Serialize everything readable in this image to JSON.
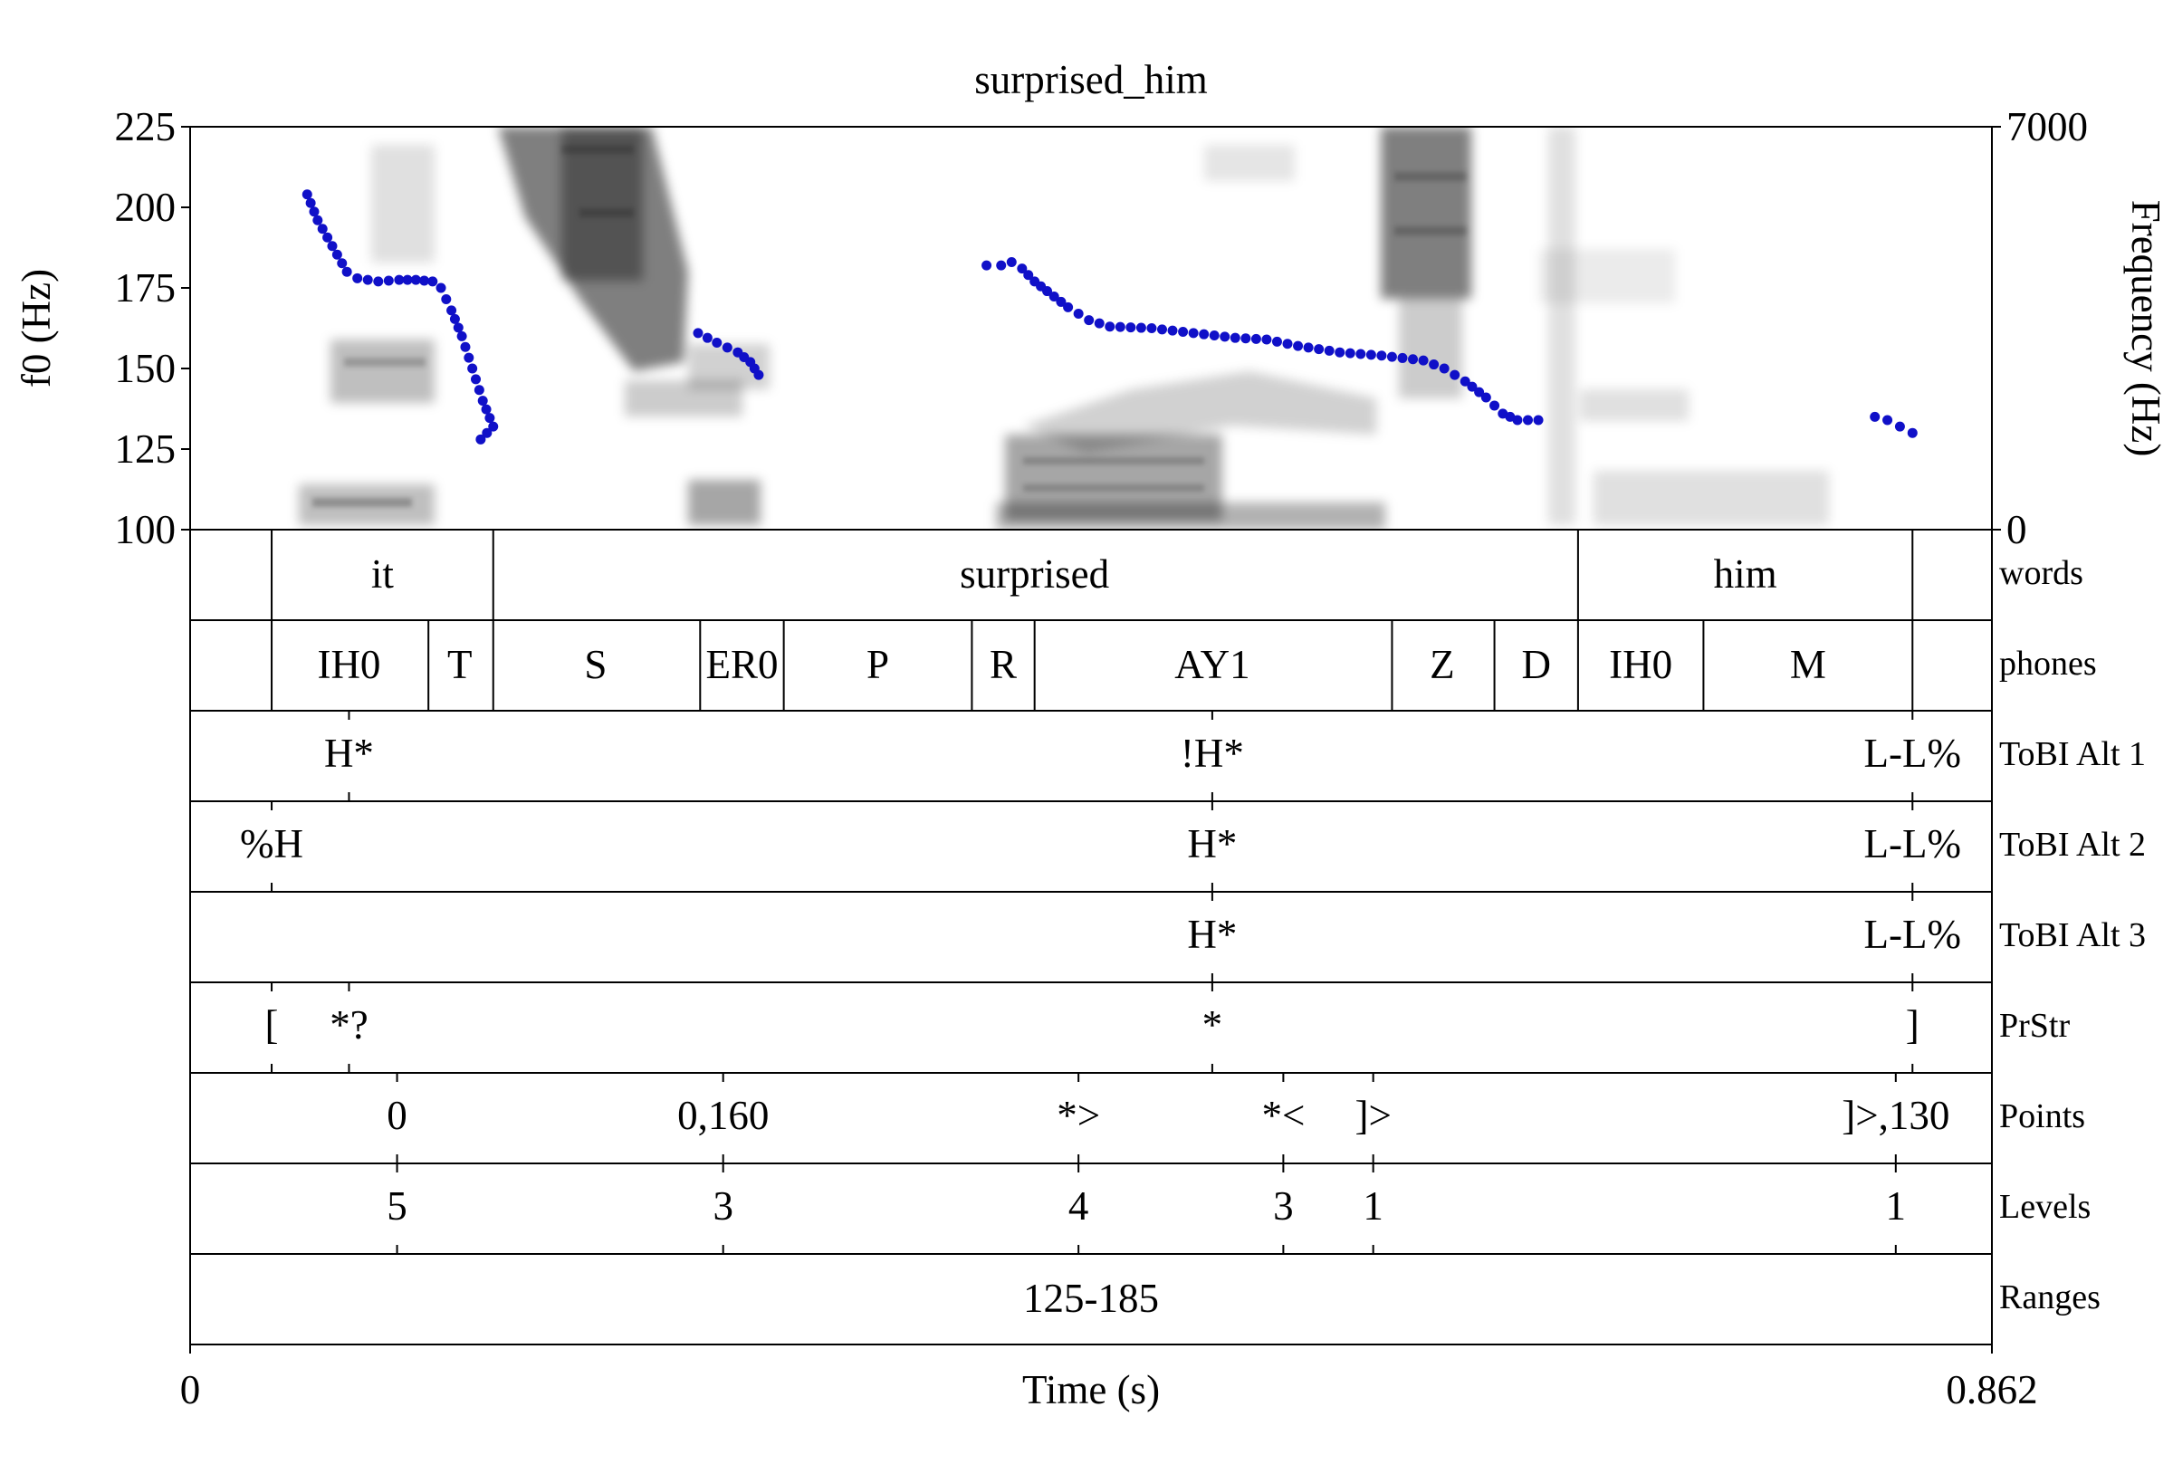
{
  "chart_data": {
    "type": "scatter",
    "title": "surprised_him",
    "xlabel": "Time (s)",
    "ylabel": "f0 (Hz)",
    "y2label": "Frequency (Hz)",
    "xlim": [
      0,
      0.862
    ],
    "ylim": [
      100,
      225
    ],
    "y2lim": [
      0,
      7000
    ],
    "x_tick_labels": [
      "0",
      "0.862"
    ],
    "y_tick_labels": [
      "100",
      "125",
      "150",
      "175",
      "200",
      "225"
    ],
    "y2_tick_labels": [
      "0",
      "7000"
    ],
    "pitch_color": "#1010c8",
    "pitch_segments": [
      [
        [
          0.056,
          204
        ],
        [
          0.061,
          196
        ],
        [
          0.075,
          180
        ],
        [
          0.08,
          178
        ],
        [
          0.09,
          177
        ],
        [
          0.1,
          177.5
        ],
        [
          0.108,
          177.5
        ],
        [
          0.116,
          177
        ],
        [
          0.12,
          175
        ],
        [
          0.125,
          168
        ],
        [
          0.13,
          160
        ],
        [
          0.135,
          150
        ],
        [
          0.14,
          140
        ],
        [
          0.145,
          132
        ],
        [
          0.139,
          128
        ]
      ],
      [
        [
          0.243,
          161
        ],
        [
          0.252,
          158
        ],
        [
          0.262,
          155
        ],
        [
          0.268,
          152
        ],
        [
          0.272,
          148
        ]
      ],
      [
        [
          0.381,
          182
        ],
        [
          0.388,
          182
        ],
        [
          0.393,
          183
        ],
        [
          0.398,
          181
        ],
        [
          0.404,
          177
        ],
        [
          0.41,
          174
        ],
        [
          0.42,
          169
        ],
        [
          0.43,
          165
        ],
        [
          0.44,
          163
        ],
        [
          0.46,
          162.5
        ],
        [
          0.48,
          161
        ],
        [
          0.5,
          159.5
        ],
        [
          0.515,
          159
        ],
        [
          0.53,
          157
        ],
        [
          0.55,
          155
        ],
        [
          0.57,
          154
        ],
        [
          0.59,
          152.5
        ],
        [
          0.6,
          150
        ],
        [
          0.61,
          146
        ],
        [
          0.62,
          141
        ],
        [
          0.628,
          136
        ],
        [
          0.635,
          134
        ],
        [
          0.645,
          134
        ]
      ],
      [
        [
          0.806,
          135
        ],
        [
          0.812,
          134
        ],
        [
          0.818,
          132
        ],
        [
          0.824,
          130
        ]
      ]
    ],
    "tiers": [
      {
        "name": "words",
        "type": "interval",
        "boundaries": [
          0.039,
          0.145,
          0.664,
          0.824
        ],
        "labels": [
          {
            "t": 0.092,
            "text": "it"
          },
          {
            "t": 0.404,
            "text": "surprised"
          },
          {
            "t": 0.744,
            "text": "him"
          }
        ]
      },
      {
        "name": "phones",
        "type": "interval",
        "boundaries": [
          0.039,
          0.114,
          0.145,
          0.244,
          0.284,
          0.374,
          0.404,
          0.575,
          0.624,
          0.664,
          0.724,
          0.824
        ],
        "labels": [
          {
            "t": 0.076,
            "text": "IH0"
          },
          {
            "t": 0.129,
            "text": "T"
          },
          {
            "t": 0.194,
            "text": "S"
          },
          {
            "t": 0.264,
            "text": "ER0"
          },
          {
            "t": 0.329,
            "text": "P"
          },
          {
            "t": 0.389,
            "text": "R"
          },
          {
            "t": 0.489,
            "text": "AY1"
          },
          {
            "t": 0.599,
            "text": "Z"
          },
          {
            "t": 0.644,
            "text": "D"
          },
          {
            "t": 0.694,
            "text": "IH0"
          },
          {
            "t": 0.774,
            "text": "M"
          }
        ]
      },
      {
        "name": "ToBI Alt 1",
        "type": "point",
        "points": [
          {
            "t": 0.076,
            "text": "H*"
          },
          {
            "t": 0.489,
            "text": "!H*"
          },
          {
            "t": 0.824,
            "text": "L-L%"
          }
        ]
      },
      {
        "name": "ToBI Alt 2",
        "type": "point",
        "points": [
          {
            "t": 0.039,
            "text": "%H"
          },
          {
            "t": 0.489,
            "text": "H*"
          },
          {
            "t": 0.824,
            "text": "L-L%"
          }
        ]
      },
      {
        "name": "ToBI Alt 3",
        "type": "point",
        "points": [
          {
            "t": 0.489,
            "text": "H*"
          },
          {
            "t": 0.824,
            "text": "L-L%"
          }
        ]
      },
      {
        "name": "PrStr",
        "type": "point",
        "points": [
          {
            "t": 0.039,
            "text": "["
          },
          {
            "t": 0.076,
            "text": "*?"
          },
          {
            "t": 0.489,
            "text": "*"
          },
          {
            "t": 0.824,
            "text": "]"
          }
        ]
      },
      {
        "name": "Points",
        "type": "point",
        "points": [
          {
            "t": 0.099,
            "text": "0"
          },
          {
            "t": 0.255,
            "text": "0,160"
          },
          {
            "t": 0.425,
            "text": "*>"
          },
          {
            "t": 0.523,
            "text": "*<"
          },
          {
            "t": 0.566,
            "text": "]>"
          },
          {
            "t": 0.816,
            "text": "]>,130"
          }
        ]
      },
      {
        "name": "Levels",
        "type": "point",
        "points": [
          {
            "t": 0.099,
            "text": "5"
          },
          {
            "t": 0.255,
            "text": "3"
          },
          {
            "t": 0.425,
            "text": "4"
          },
          {
            "t": 0.523,
            "text": "3"
          },
          {
            "t": 0.566,
            "text": "1"
          },
          {
            "t": 0.816,
            "text": "1"
          }
        ]
      },
      {
        "name": "Ranges",
        "type": "interval",
        "boundaries": [],
        "labels": [
          {
            "t": 0.431,
            "text": "125-185"
          }
        ]
      }
    ]
  }
}
